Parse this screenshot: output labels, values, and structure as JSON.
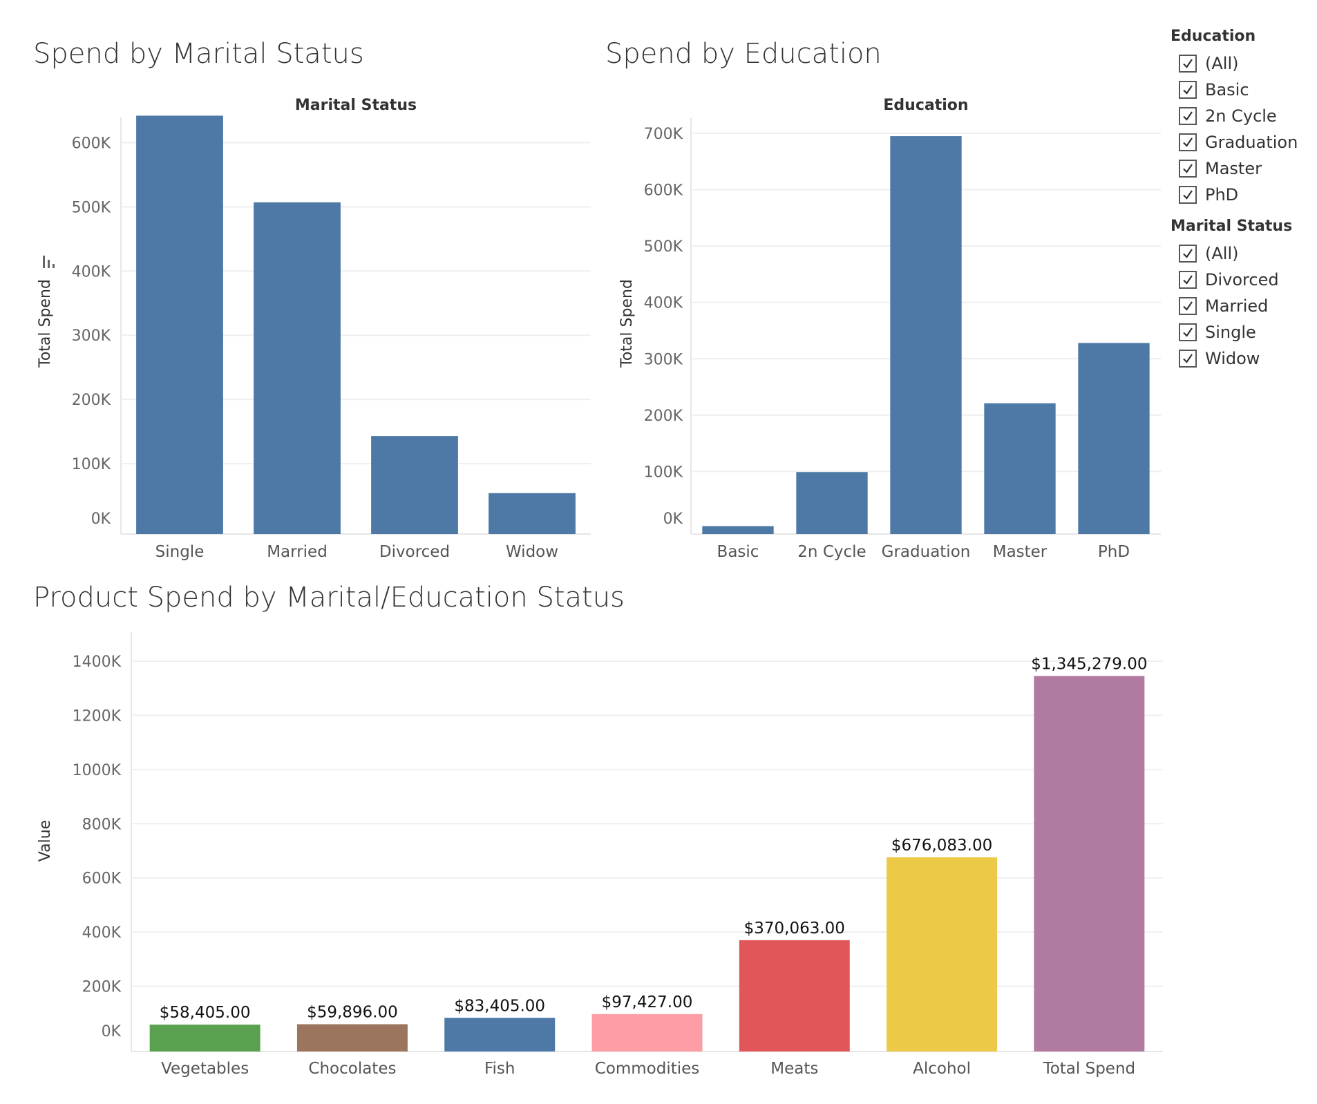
{
  "titles": {
    "marital": "Spend by Marital Status",
    "education": "Spend by Education",
    "product": "Product Spend by Marital/Education Status"
  },
  "charts": {
    "marital": {
      "type": "bar",
      "title": "Marital Status",
      "categories": [
        "Single",
        "Married",
        "Divorced",
        "Widow"
      ],
      "values": [
        642000,
        507000,
        143000,
        54000
      ],
      "ylabel": "Total Spend",
      "ylim": [
        0,
        650000
      ],
      "yticks": [
        0,
        100000,
        200000,
        300000,
        400000,
        500000,
        600000
      ],
      "ytick_labels": [
        "0K",
        "100K",
        "200K",
        "300K",
        "400K",
        "500K",
        "600K"
      ],
      "color": "#4e79a7",
      "grid": true
    },
    "education": {
      "type": "bar",
      "title": "Education",
      "categories": [
        "Basic",
        "2n Cycle",
        "Graduation",
        "Master",
        "PhD"
      ],
      "values": [
        3000,
        99000,
        695000,
        221000,
        328000
      ],
      "ylabel": "Total Spend",
      "ylim": [
        0,
        700000
      ],
      "yticks": [
        0,
        100000,
        200000,
        300000,
        400000,
        500000,
        600000,
        700000
      ],
      "ytick_labels": [
        "0K",
        "100K",
        "200K",
        "300K",
        "400K",
        "500K",
        "600K",
        "700K"
      ],
      "color": "#4e79a7",
      "grid": true
    },
    "product": {
      "type": "bar",
      "categories": [
        "Vegetables",
        "Chocolates",
        "Fish",
        "Commodities",
        "Meats",
        "Alcohol",
        "Total Spend"
      ],
      "values": [
        58405,
        59896,
        83405,
        97427,
        370063,
        676083,
        1345279
      ],
      "labels": [
        "$58,405.00",
        "$59,896.00",
        "$83,405.00",
        "$97,427.00",
        "$370,063.00",
        "$676,083.00",
        "$1,345,279.00"
      ],
      "colors": [
        "#59a14f",
        "#9c755f",
        "#4e79a7",
        "#ff9da7",
        "#e15759",
        "#edc948",
        "#b07aa1"
      ],
      "ylabel": "Value",
      "ylim": [
        0,
        1400000
      ],
      "yticks": [
        0,
        200000,
        400000,
        600000,
        800000,
        1000000,
        1200000,
        1400000
      ],
      "ytick_labels": [
        "0K",
        "200K",
        "400K",
        "600K",
        "800K",
        "1000K",
        "1200K",
        "1400K"
      ],
      "grid": true
    }
  },
  "filters": [
    {
      "title": "Education",
      "items": [
        "(All)",
        "Basic",
        "2n Cycle",
        "Graduation",
        "Master",
        "PhD"
      ]
    },
    {
      "title": "Marital Status",
      "items": [
        "(All)",
        "Divorced",
        "Married",
        "Single",
        "Widow"
      ]
    }
  ]
}
